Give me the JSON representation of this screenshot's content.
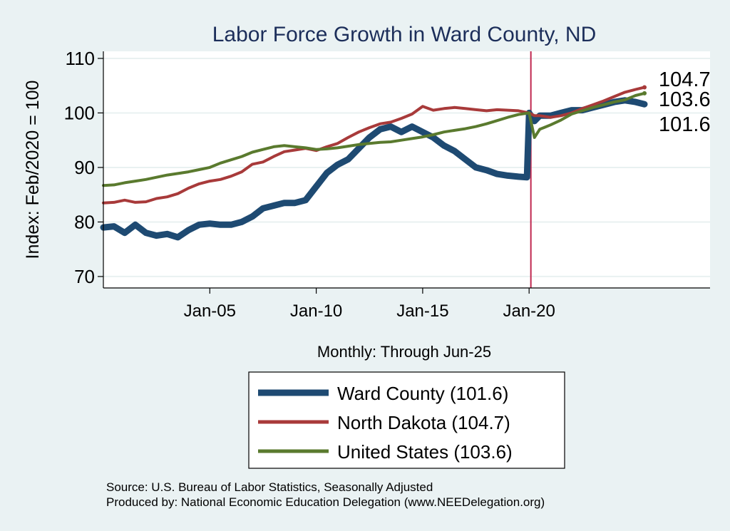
{
  "chart_data": {
    "type": "line",
    "title": "Labor Force Growth in Ward  County, ND",
    "xlabel": "Monthly: Through Jun-25",
    "ylabel": "Index: Feb/2020 = 100",
    "x_ticks": [
      "Jan-05",
      "Jan-10",
      "Jan-15",
      "Jan-20"
    ],
    "x_tick_values": [
      2005.0,
      2010.0,
      2015.0,
      2020.0
    ],
    "y_ticks": [
      "70",
      "80",
      "90",
      "100",
      "110"
    ],
    "y_tick_values": [
      70,
      80,
      90,
      100,
      110
    ],
    "xlim": [
      2000.0,
      2028.5
    ],
    "ylim": [
      67.9,
      111.3
    ],
    "reference_line": {
      "x": 2020.083,
      "color": "#c0284f"
    },
    "end_labels": [
      "104.7",
      "103.6",
      "101.6"
    ],
    "series": [
      {
        "name": "Ward  County",
        "legend_label": "Ward  County (101.6)",
        "color": "#1e4a72",
        "x": [
          2000.0,
          2000.5,
          2001.0,
          2001.5,
          2002.0,
          2002.5,
          2003.0,
          2003.5,
          2004.0,
          2004.5,
          2005.0,
          2005.5,
          2006.0,
          2006.5,
          2007.0,
          2007.5,
          2008.0,
          2008.5,
          2009.0,
          2009.5,
          2010.0,
          2010.5,
          2011.0,
          2011.5,
          2012.0,
          2012.5,
          2013.0,
          2013.5,
          2014.0,
          2014.5,
          2015.0,
          2015.5,
          2016.0,
          2016.5,
          2017.0,
          2017.5,
          2018.0,
          2018.5,
          2019.0,
          2019.5,
          2019.9,
          2020.0,
          2020.25,
          2020.5,
          2021.0,
          2021.5,
          2022.0,
          2022.5,
          2023.0,
          2023.5,
          2024.0,
          2024.5,
          2025.0,
          2025.42
        ],
        "values": [
          79.0,
          79.2,
          78.0,
          79.5,
          78.0,
          77.5,
          77.8,
          77.2,
          78.5,
          79.5,
          79.7,
          79.5,
          79.5,
          80.0,
          81.0,
          82.5,
          83.0,
          83.5,
          83.5,
          84.0,
          86.5,
          89.0,
          90.5,
          91.5,
          93.5,
          95.5,
          97.0,
          97.5,
          96.5,
          97.5,
          96.5,
          95.5,
          94.0,
          93.0,
          91.5,
          90.0,
          89.5,
          88.8,
          88.5,
          88.3,
          88.2,
          100.0,
          98.5,
          99.5,
          99.5,
          100.0,
          100.5,
          100.5,
          101.0,
          101.5,
          102.0,
          102.3,
          102.0,
          101.6
        ]
      },
      {
        "name": "North Dakota",
        "legend_label": "North Dakota (104.7)",
        "color": "#a83a3a",
        "x": [
          2000.0,
          2000.5,
          2001.0,
          2001.5,
          2002.0,
          2002.5,
          2003.0,
          2003.5,
          2004.0,
          2004.5,
          2005.0,
          2005.5,
          2006.0,
          2006.5,
          2007.0,
          2007.5,
          2008.0,
          2008.5,
          2009.0,
          2009.5,
          2010.0,
          2010.5,
          2011.0,
          2011.5,
          2012.0,
          2012.5,
          2013.0,
          2013.5,
          2014.0,
          2014.5,
          2015.0,
          2015.5,
          2016.0,
          2016.5,
          2017.0,
          2017.5,
          2018.0,
          2018.5,
          2019.0,
          2019.5,
          2020.0,
          2020.25,
          2020.5,
          2021.0,
          2021.5,
          2022.0,
          2022.5,
          2023.0,
          2023.5,
          2024.0,
          2024.5,
          2025.0,
          2025.42
        ],
        "values": [
          83.5,
          83.6,
          84.0,
          83.6,
          83.7,
          84.3,
          84.6,
          85.2,
          86.2,
          87.0,
          87.5,
          87.8,
          88.4,
          89.2,
          90.6,
          91.0,
          92.0,
          92.9,
          93.2,
          93.5,
          93.1,
          93.8,
          94.4,
          95.5,
          96.5,
          97.3,
          98.0,
          98.3,
          99.0,
          99.8,
          101.2,
          100.5,
          100.8,
          101.0,
          100.8,
          100.6,
          100.4,
          100.6,
          100.5,
          100.4,
          100.0,
          99.5,
          99.5,
          99.2,
          99.5,
          100.0,
          100.8,
          101.5,
          102.2,
          103.0,
          103.8,
          104.3,
          104.7
        ]
      },
      {
        "name": "United States",
        "legend_label": "United States (103.6)",
        "color": "#5a7a2e",
        "x": [
          2000.0,
          2000.5,
          2001.0,
          2001.5,
          2002.0,
          2002.5,
          2003.0,
          2003.5,
          2004.0,
          2004.5,
          2005.0,
          2005.5,
          2006.0,
          2006.5,
          2007.0,
          2007.5,
          2008.0,
          2008.5,
          2009.0,
          2009.5,
          2010.0,
          2010.5,
          2011.0,
          2011.5,
          2012.0,
          2012.5,
          2013.0,
          2013.5,
          2014.0,
          2014.5,
          2015.0,
          2015.5,
          2016.0,
          2016.5,
          2017.0,
          2017.5,
          2018.0,
          2018.5,
          2019.0,
          2019.5,
          2020.0,
          2020.25,
          2020.5,
          2021.0,
          2021.5,
          2022.0,
          2022.5,
          2023.0,
          2023.5,
          2024.0,
          2024.5,
          2025.0,
          2025.42
        ],
        "values": [
          86.7,
          86.8,
          87.2,
          87.5,
          87.8,
          88.2,
          88.6,
          88.9,
          89.2,
          89.6,
          90.0,
          90.8,
          91.4,
          92.0,
          92.8,
          93.3,
          93.8,
          94.0,
          93.8,
          93.6,
          93.3,
          93.4,
          93.6,
          93.9,
          94.2,
          94.4,
          94.6,
          94.7,
          95.0,
          95.3,
          95.6,
          96.0,
          96.5,
          96.8,
          97.1,
          97.5,
          98.0,
          98.6,
          99.2,
          99.7,
          100.0,
          95.5,
          97.0,
          97.8,
          98.7,
          99.8,
          100.4,
          101.0,
          101.5,
          102.0,
          102.4,
          103.2,
          103.6
        ]
      }
    ]
  },
  "source_line": "Source: U.S. Bureau of Labor Statistics, Seasonally Adjusted",
  "produced_line": "Produced by: National Economic Education Delegation (www.NEEDelegation.org)"
}
